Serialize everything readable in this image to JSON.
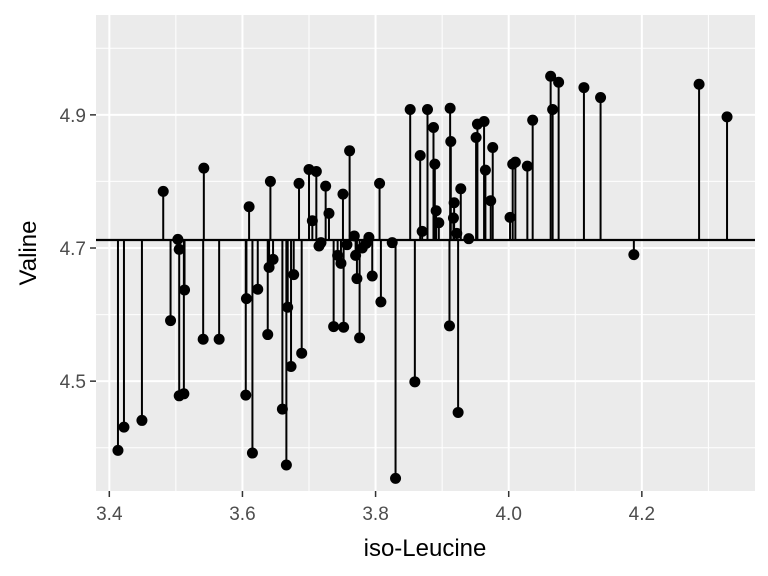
{
  "chart_data": {
    "type": "scatter",
    "style": "lollipop",
    "xlabel": "iso-Leucine",
    "ylabel": "Valine",
    "xlim": [
      3.38,
      4.37
    ],
    "ylim": [
      4.335,
      5.05
    ],
    "baseline": 4.712,
    "grid": true,
    "x_ticks": [
      3.4,
      3.6,
      3.8,
      4.0,
      4.2
    ],
    "x_tick_labels": [
      "3.4",
      "3.6",
      "3.8",
      "4.0",
      "4.2"
    ],
    "y_ticks": [
      4.5,
      4.7,
      4.9
    ],
    "y_tick_labels": [
      "4.5",
      "4.7",
      "4.9"
    ],
    "points": [
      {
        "x": 3.413,
        "y": 4.396
      },
      {
        "x": 3.422,
        "y": 4.431
      },
      {
        "x": 3.449,
        "y": 4.441
      },
      {
        "x": 3.481,
        "y": 4.785
      },
      {
        "x": 3.492,
        "y": 4.591
      },
      {
        "x": 3.503,
        "y": 4.713
      },
      {
        "x": 3.505,
        "y": 4.698
      },
      {
        "x": 3.505,
        "y": 4.478
      },
      {
        "x": 3.512,
        "y": 4.481
      },
      {
        "x": 3.513,
        "y": 4.637
      },
      {
        "x": 3.541,
        "y": 4.563
      },
      {
        "x": 3.542,
        "y": 4.82
      },
      {
        "x": 3.565,
        "y": 4.563
      },
      {
        "x": 3.605,
        "y": 4.479
      },
      {
        "x": 3.606,
        "y": 4.624
      },
      {
        "x": 3.61,
        "y": 4.762
      },
      {
        "x": 3.615,
        "y": 4.392
      },
      {
        "x": 3.623,
        "y": 4.638
      },
      {
        "x": 3.638,
        "y": 4.57
      },
      {
        "x": 3.64,
        "y": 4.671
      },
      {
        "x": 3.642,
        "y": 4.8
      },
      {
        "x": 3.646,
        "y": 4.683
      },
      {
        "x": 3.66,
        "y": 4.458
      },
      {
        "x": 3.666,
        "y": 4.374
      },
      {
        "x": 3.668,
        "y": 4.611
      },
      {
        "x": 3.673,
        "y": 4.522
      },
      {
        "x": 3.677,
        "y": 4.66
      },
      {
        "x": 3.685,
        "y": 4.797
      },
      {
        "x": 3.689,
        "y": 4.542
      },
      {
        "x": 3.7,
        "y": 4.818
      },
      {
        "x": 3.705,
        "y": 4.741
      },
      {
        "x": 3.711,
        "y": 4.815
      },
      {
        "x": 3.715,
        "y": 4.703
      },
      {
        "x": 3.718,
        "y": 4.708
      },
      {
        "x": 3.725,
        "y": 4.793
      },
      {
        "x": 3.73,
        "y": 4.752
      },
      {
        "x": 3.737,
        "y": 4.582
      },
      {
        "x": 3.743,
        "y": 4.689
      },
      {
        "x": 3.748,
        "y": 4.677
      },
      {
        "x": 3.751,
        "y": 4.781
      },
      {
        "x": 3.752,
        "y": 4.581
      },
      {
        "x": 3.757,
        "y": 4.705
      },
      {
        "x": 3.761,
        "y": 4.846
      },
      {
        "x": 3.768,
        "y": 4.718
      },
      {
        "x": 3.77,
        "y": 4.689
      },
      {
        "x": 3.772,
        "y": 4.654
      },
      {
        "x": 3.776,
        "y": 4.565
      },
      {
        "x": 3.78,
        "y": 4.7
      },
      {
        "x": 3.786,
        "y": 4.707
      },
      {
        "x": 3.79,
        "y": 4.716
      },
      {
        "x": 3.795,
        "y": 4.658
      },
      {
        "x": 3.806,
        "y": 4.797
      },
      {
        "x": 3.808,
        "y": 4.619
      },
      {
        "x": 3.825,
        "y": 4.708
      },
      {
        "x": 3.83,
        "y": 4.354
      },
      {
        "x": 3.852,
        "y": 4.908
      },
      {
        "x": 3.859,
        "y": 4.499
      },
      {
        "x": 3.867,
        "y": 4.839
      },
      {
        "x": 3.87,
        "y": 4.725
      },
      {
        "x": 3.878,
        "y": 4.908
      },
      {
        "x": 3.887,
        "y": 4.881
      },
      {
        "x": 3.889,
        "y": 4.826
      },
      {
        "x": 3.891,
        "y": 4.756
      },
      {
        "x": 3.895,
        "y": 4.738
      },
      {
        "x": 3.911,
        "y": 4.583
      },
      {
        "x": 3.912,
        "y": 4.91
      },
      {
        "x": 3.913,
        "y": 4.86
      },
      {
        "x": 3.917,
        "y": 4.745
      },
      {
        "x": 3.918,
        "y": 4.768
      },
      {
        "x": 3.922,
        "y": 4.722
      },
      {
        "x": 3.924,
        "y": 4.453
      },
      {
        "x": 3.928,
        "y": 4.789
      },
      {
        "x": 3.94,
        "y": 4.714
      },
      {
        "x": 3.951,
        "y": 4.866
      },
      {
        "x": 3.953,
        "y": 4.886
      },
      {
        "x": 3.963,
        "y": 4.89
      },
      {
        "x": 3.965,
        "y": 4.817
      },
      {
        "x": 3.973,
        "y": 4.771
      },
      {
        "x": 3.976,
        "y": 4.851
      },
      {
        "x": 4.002,
        "y": 4.746
      },
      {
        "x": 4.006,
        "y": 4.826
      },
      {
        "x": 4.01,
        "y": 4.829
      },
      {
        "x": 4.028,
        "y": 4.823
      },
      {
        "x": 4.036,
        "y": 4.892
      },
      {
        "x": 4.063,
        "y": 4.958
      },
      {
        "x": 4.066,
        "y": 4.908
      },
      {
        "x": 4.075,
        "y": 4.949
      },
      {
        "x": 4.113,
        "y": 4.941
      },
      {
        "x": 4.138,
        "y": 4.926
      },
      {
        "x": 4.188,
        "y": 4.69
      },
      {
        "x": 4.286,
        "y": 4.946
      },
      {
        "x": 4.328,
        "y": 4.897
      }
    ]
  }
}
